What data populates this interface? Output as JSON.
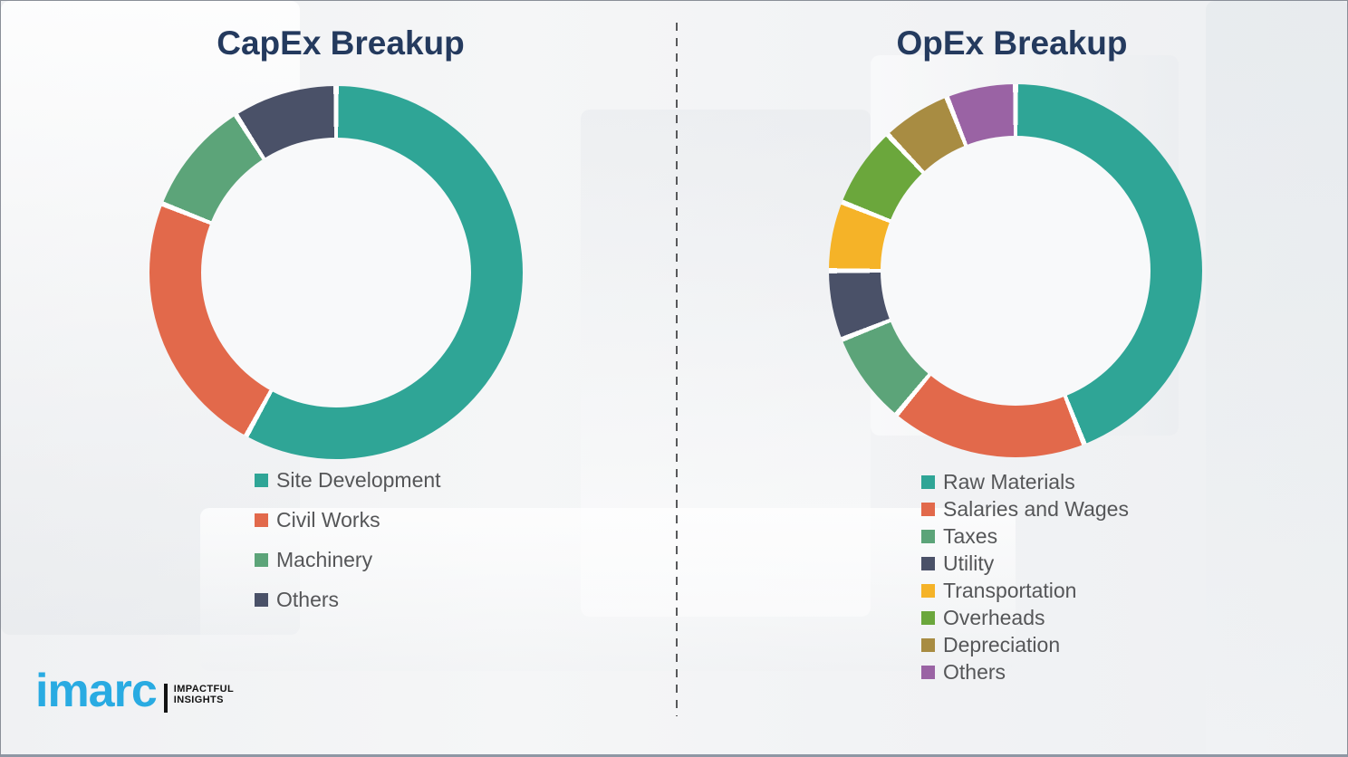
{
  "chart_data": [
    {
      "type": "pie",
      "subtype": "donut",
      "title": "CapEx Breakup",
      "labels": [
        "Site Development",
        "Civil Works",
        "Machinery",
        "Others"
      ],
      "values": [
        58,
        23,
        10,
        9
      ],
      "unit": "percent_estimated",
      "colors": [
        "#2FA596",
        "#E2694B",
        "#5CA479",
        "#4A5168"
      ],
      "start_angle_deg": 0,
      "direction": "clockwise",
      "legend_position": "below-left",
      "gridlines": false
    },
    {
      "type": "pie",
      "subtype": "donut",
      "title": "OpEx Breakup",
      "labels": [
        "Raw Materials",
        "Salaries and Wages",
        "Taxes",
        "Utility",
        "Transportation",
        "Overheads",
        "Depreciation",
        "Others"
      ],
      "values": [
        44,
        17,
        8,
        6,
        6,
        7,
        6,
        6
      ],
      "unit": "percent_estimated",
      "colors": [
        "#2FA596",
        "#E2694B",
        "#5CA479",
        "#4A5168",
        "#F5B328",
        "#6BA73C",
        "#A88C42",
        "#9A63A4"
      ],
      "start_angle_deg": 0,
      "direction": "clockwise",
      "legend_position": "below-left",
      "gridlines": false
    }
  ],
  "logo": {
    "wordmark": "imarc",
    "tagline_line1": "IMPACTFUL",
    "tagline_line2": "INSIGHTS",
    "brand_color": "#29ABE2"
  },
  "style": {
    "title_color": "#243A5E",
    "legend_text_color": "#555658",
    "background_color": "#F1F2F4",
    "divider_color": "#58595B"
  }
}
